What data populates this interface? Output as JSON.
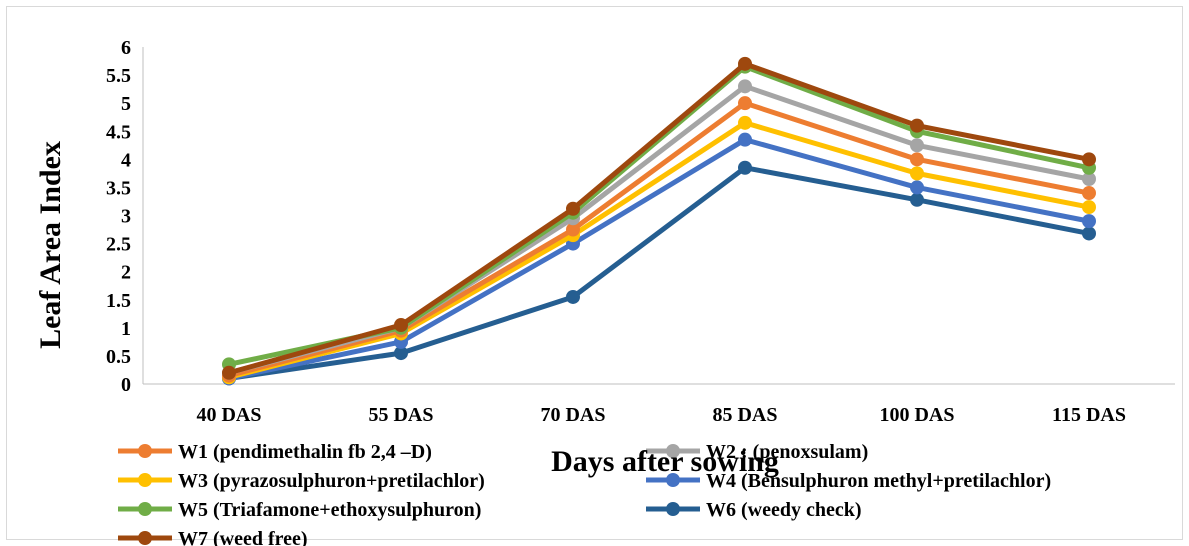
{
  "chart_data": {
    "type": "line",
    "title": "",
    "xlabel": "Days after sowing",
    "ylabel": "Leaf Area Index",
    "categories": [
      "40 DAS",
      "55 DAS",
      "70 DAS",
      "85 DAS",
      "100 DAS",
      "115 DAS"
    ],
    "ylim": [
      0,
      6
    ],
    "yticks": [
      "0",
      "0.5",
      "1",
      "1.5",
      "2",
      "2.5",
      "3",
      "3.5",
      "4",
      "4.5",
      "5",
      "5.5",
      "6"
    ],
    "grid": false,
    "legend_position": "bottom",
    "series": [
      {
        "name": "W1 (pendimethalin fb 2,4 –D)",
        "color": "#ED7D31",
        "values": [
          0.15,
          0.95,
          2.75,
          5.0,
          4.0,
          3.4
        ]
      },
      {
        "name": "W2 : (penoxsulam)",
        "color": "#A5A5A5",
        "values": [
          0.2,
          1.0,
          2.95,
          5.3,
          4.25,
          3.65
        ]
      },
      {
        "name": "W3 (pyrazosulphuron+pretilachlor)",
        "color": "#FFC000",
        "values": [
          0.12,
          0.9,
          2.65,
          4.65,
          3.75,
          3.15
        ]
      },
      {
        "name": "W4 (Bensulphuron methyl+pretilachlor)",
        "color": "#4472C4",
        "values": [
          0.1,
          0.75,
          2.5,
          4.35,
          3.5,
          2.9
        ]
      },
      {
        "name": "W5 (Triafamone+ethoxysulphuron)",
        "color": "#70AD47",
        "values": [
          0.35,
          1.0,
          3.05,
          5.65,
          4.5,
          3.85
        ]
      },
      {
        "name": "W6 (weedy check)",
        "color": "#255E91",
        "values": [
          0.1,
          0.55,
          1.55,
          3.85,
          3.28,
          2.68
        ]
      },
      {
        "name": "W7 (weed free)",
        "color": "#9E480E",
        "values": [
          0.2,
          1.05,
          3.12,
          5.7,
          4.6,
          4.0
        ]
      }
    ]
  }
}
